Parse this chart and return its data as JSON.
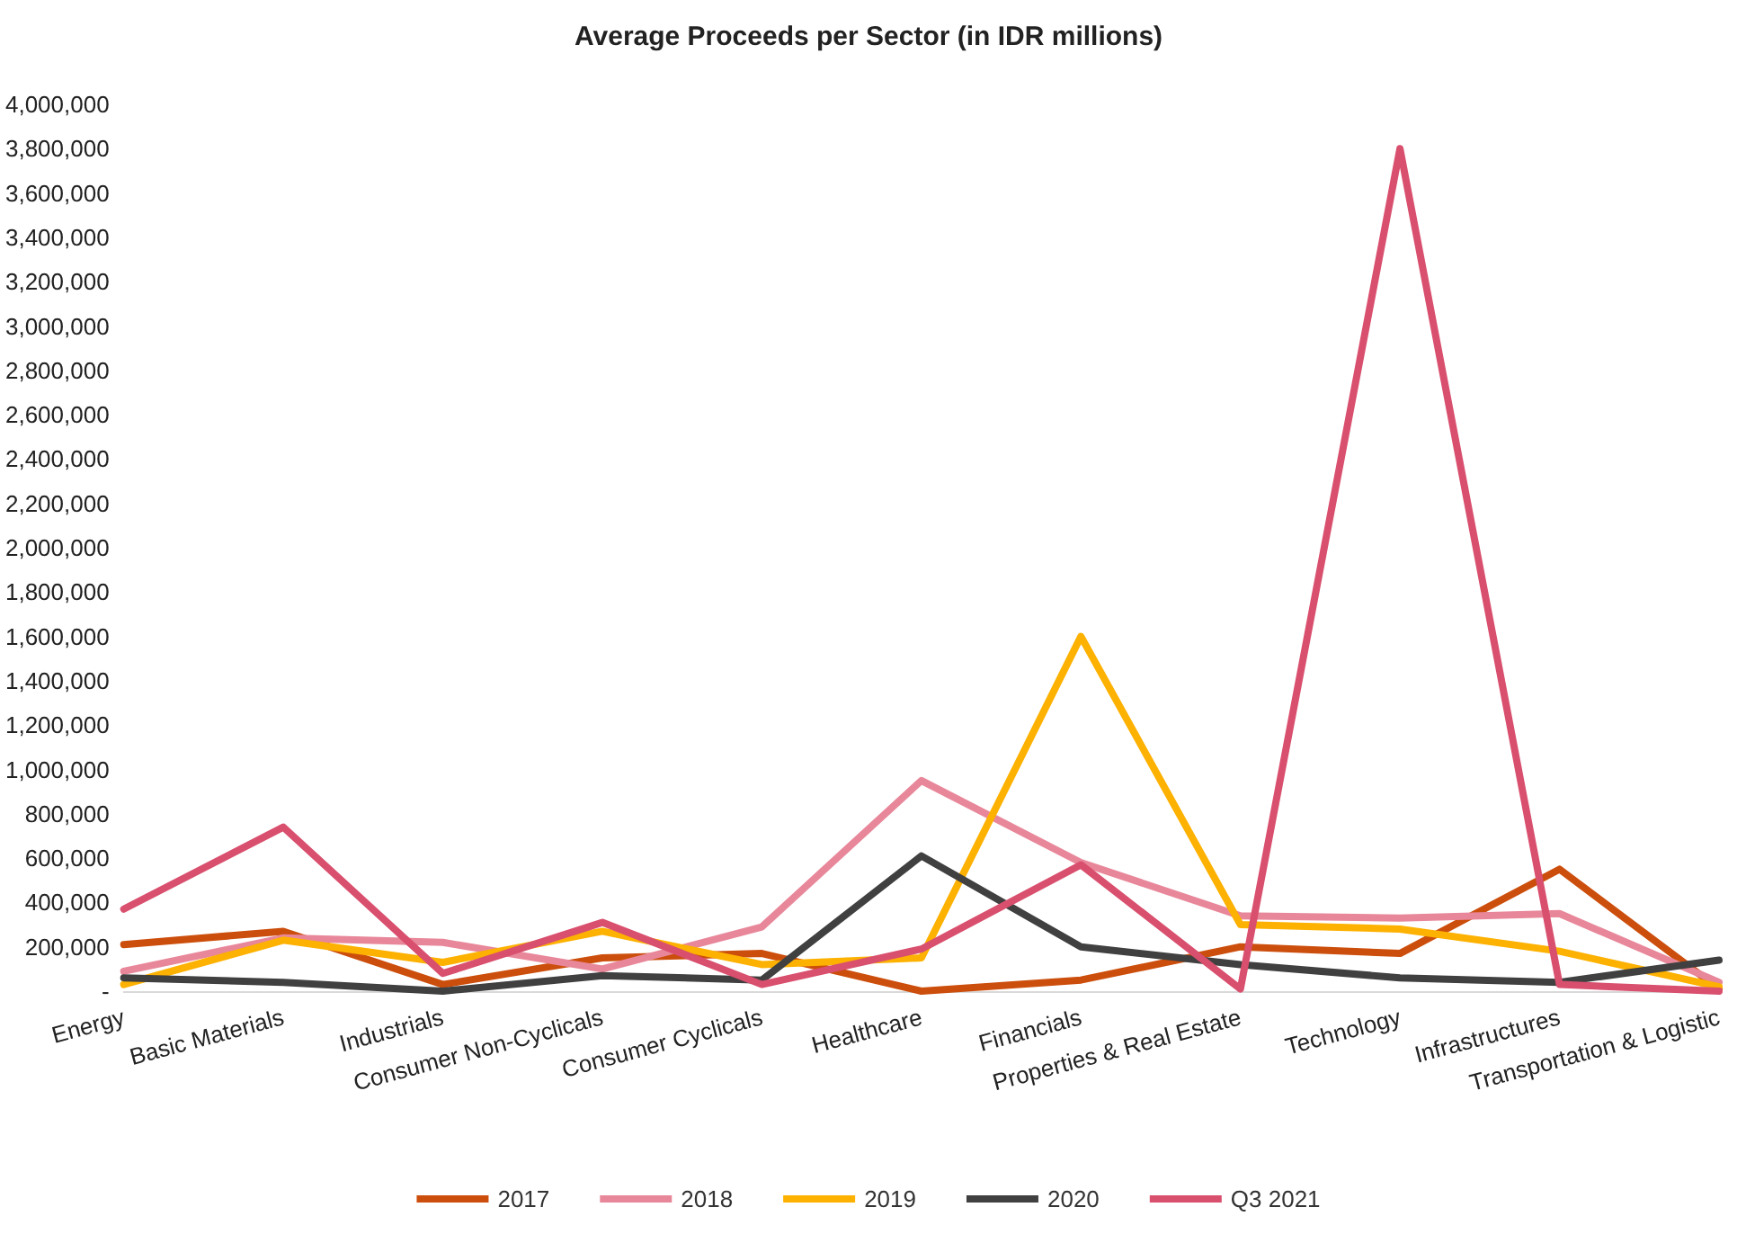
{
  "chart_data": {
    "type": "line",
    "title": "Average Proceeds per Sector (in IDR millions)",
    "categories": [
      "Energy",
      "Basic Materials",
      "Industrials",
      "Consumer Non-Cyclicals",
      "Consumer Cyclicals",
      "Healthcare",
      "Financials",
      "Properties & Real Estate",
      "Technology",
      "Infrastructures",
      "Transportation & Logistic"
    ],
    "series": [
      {
        "name": "2017",
        "color": "#cc4e0c",
        "values": [
          210000,
          270000,
          30000,
          150000,
          170000,
          0,
          50000,
          200000,
          170000,
          550000,
          10000
        ]
      },
      {
        "name": "2018",
        "color": "#e8879a",
        "values": [
          90000,
          240000,
          220000,
          100000,
          290000,
          950000,
          580000,
          340000,
          330000,
          350000,
          40000
        ]
      },
      {
        "name": "2019",
        "color": "#fdb100",
        "values": [
          30000,
          230000,
          130000,
          270000,
          120000,
          150000,
          1600000,
          300000,
          280000,
          180000,
          20000
        ]
      },
      {
        "name": "2020",
        "color": "#404040",
        "values": [
          60000,
          40000,
          0,
          70000,
          50000,
          610000,
          200000,
          120000,
          60000,
          40000,
          140000
        ]
      },
      {
        "name": "Q3 2021",
        "color": "#d94f6e",
        "values": [
          370000,
          740000,
          80000,
          310000,
          30000,
          190000,
          570000,
          10000,
          3800000,
          30000,
          0
        ]
      }
    ],
    "ylim": [
      0,
      4000000
    ],
    "yticks": [
      {
        "value": 0,
        "label": "-"
      },
      {
        "value": 200000,
        "label": "200,000"
      },
      {
        "value": 400000,
        "label": "400,000"
      },
      {
        "value": 600000,
        "label": "600,000"
      },
      {
        "value": 800000,
        "label": "800,000"
      },
      {
        "value": 1000000,
        "label": "1,000,000"
      },
      {
        "value": 1200000,
        "label": "1,200,000"
      },
      {
        "value": 1400000,
        "label": "1,400,000"
      },
      {
        "value": 1600000,
        "label": "1,600,000"
      },
      {
        "value": 1800000,
        "label": "1,800,000"
      },
      {
        "value": 2000000,
        "label": "2,000,000"
      },
      {
        "value": 2200000,
        "label": "2,200,000"
      },
      {
        "value": 2400000,
        "label": "2,400,000"
      },
      {
        "value": 2600000,
        "label": "2,600,000"
      },
      {
        "value": 2800000,
        "label": "2,800,000"
      },
      {
        "value": 3000000,
        "label": "3,000,000"
      },
      {
        "value": 3200000,
        "label": "3,200,000"
      },
      {
        "value": 3400000,
        "label": "3,400,000"
      },
      {
        "value": 3600000,
        "label": "3,600,000"
      },
      {
        "value": 3800000,
        "label": "3,800,000"
      },
      {
        "value": 4000000,
        "label": "4,000,000"
      }
    ],
    "grid": false,
    "legend": "bottom",
    "marker": "none",
    "line_style": "solid"
  }
}
